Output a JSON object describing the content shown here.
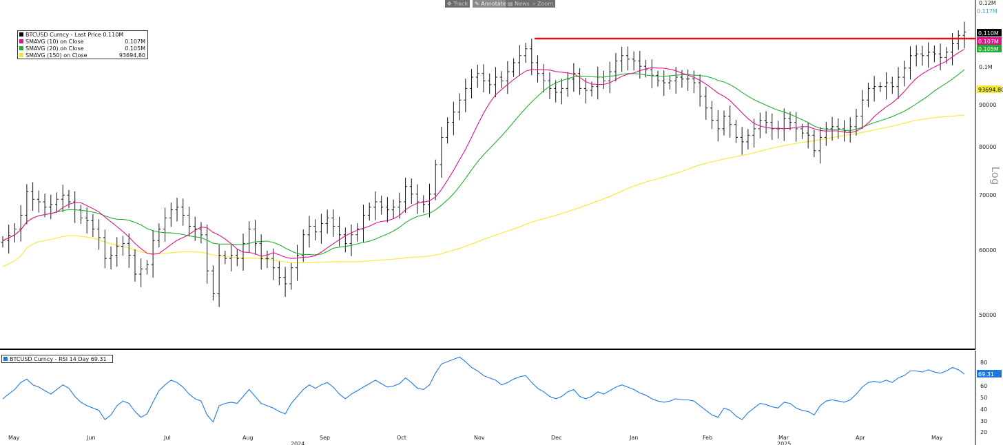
{
  "toolbar": {
    "buttons": [
      {
        "label": "Track",
        "icon": "track-icon",
        "active": false
      },
      {
        "label": "Annotate",
        "icon": "annotate-icon",
        "active": true
      },
      {
        "label": "News",
        "icon": "news-icon",
        "active": false
      },
      {
        "label": "Zoom",
        "icon": "zoom-icon",
        "active": false
      }
    ]
  },
  "price_legend": [
    {
      "label": "BTCUSD Curncy - Last Price 0.110M",
      "value": "",
      "color": "#000000"
    },
    {
      "label": "SMAVG (10)  on Close",
      "value": "0.107M",
      "color": "#e0118a"
    },
    {
      "label": "SMAVG (20)  on Close",
      "value": "0.105M",
      "color": "#1fae2e"
    },
    {
      "label": "SMAVG (150)  on Close",
      "value": "93694.80",
      "color": "#f5ea3a"
    }
  ],
  "rsi_legend": {
    "label": "BTCUSD Curncy - RSI 14 Day 69.31",
    "color": "#1f78e0"
  },
  "axis": {
    "scale_label": "Log",
    "top_tick": "0.12M",
    "ticks": [
      "0.1M",
      "90000",
      "80000",
      "70000",
      "60000",
      "50000"
    ],
    "rsi_ticks": [
      "80",
      "70",
      "60",
      "50",
      "40",
      "30",
      "20"
    ],
    "months": [
      "May",
      "Jun",
      "Jul",
      "Aug",
      "Sep",
      "Oct",
      "Nov",
      "Dec",
      "Jan",
      "Feb",
      "Mar",
      "Apr",
      "May"
    ],
    "years": [
      "2024",
      "2025"
    ]
  },
  "value_tags": {
    "high": {
      "text": "0.117M",
      "color": "#3aa0d8"
    },
    "last": {
      "text": "0.110M",
      "color": "#000000"
    },
    "sma10": {
      "text": "0.107M",
      "color": "#e0118a"
    },
    "sma20": {
      "text": "0.105M",
      "color": "#1fae2e"
    },
    "sma150": {
      "text": "93694.80",
      "color": "#f5ea3a"
    },
    "rsi": {
      "text": "69.31",
      "color": "#1f78e0"
    }
  },
  "chart_data": [
    {
      "type": "ohlc",
      "scale": "log",
      "ylim": [
        45000,
        120000
      ],
      "x_months": [
        "May",
        "Jun",
        "Jul",
        "Aug",
        "Sep",
        "Oct",
        "Nov",
        "Dec",
        "Jan",
        "Feb",
        "Mar",
        "Apr",
        "May"
      ],
      "resistance_level": 108000,
      "series": [
        {
          "name": "BTCUSD Curncy - Last Price",
          "color": "#000000",
          "last": 110000,
          "closes": [
            61500,
            62400,
            63500,
            66000,
            70500,
            69000,
            68500,
            67500,
            68000,
            69000,
            69800,
            68500,
            67000,
            65500,
            65000,
            63500,
            62000,
            58500,
            59000,
            60500,
            61000,
            59000,
            56000,
            56800,
            57500,
            61500,
            63500,
            65500,
            67000,
            67500,
            66000,
            64000,
            63500,
            62500,
            56500,
            53000,
            59000,
            58500,
            59000,
            58500,
            61000,
            63500,
            61000,
            58500,
            58500,
            57000,
            55500,
            54500,
            57000,
            59000,
            62500,
            64000,
            63000,
            64500,
            65500,
            64000,
            62500,
            61000,
            62500,
            63500,
            66000,
            67500,
            68500,
            67500,
            67000,
            67500,
            68500,
            71500,
            70000,
            68500,
            68000,
            70000,
            76000,
            82000,
            85500,
            88000,
            91000,
            94000,
            97000,
            98000,
            96000,
            95000,
            97000,
            96000,
            98500,
            101000,
            103000,
            105000,
            101000,
            98000,
            96000,
            94000,
            93000,
            94000,
            96500,
            98000,
            94000,
            93500,
            94500,
            97000,
            96000,
            98500,
            101500,
            103000,
            102000,
            101500,
            100000,
            99000,
            97500,
            96000,
            95500,
            96000,
            97000,
            96500,
            96500,
            95500,
            92000,
            89000,
            86000,
            84000,
            87000,
            85000,
            82000,
            81000,
            82500,
            84000,
            86000,
            85500,
            84000,
            84000,
            86500,
            85500,
            84000,
            83000,
            82500,
            79000,
            82000,
            84000,
            84500,
            84000,
            83500,
            84500,
            87000,
            91000,
            94000,
            94500,
            94500,
            95500,
            94500,
            97000,
            99500,
            103000,
            103500,
            103000,
            104000,
            103500,
            102500,
            104000,
            106500,
            109000,
            110000
          ]
        },
        {
          "name": "SMAVG (10)  on Close",
          "color": "#e0118a",
          "last": 107000
        },
        {
          "name": "SMAVG (20)  on Close",
          "color": "#1fae2e",
          "last": 105000
        },
        {
          "name": "SMAVG (150)  on Close",
          "color": "#f5ea3a",
          "last": 93694.8
        }
      ]
    },
    {
      "type": "line",
      "ylim": [
        20,
        85
      ],
      "series": [
        {
          "name": "BTCUSD Curncy - RSI 14 Day",
          "color": "#1f78e0",
          "last": 69.31,
          "values": [
            48,
            52,
            56,
            62,
            65,
            60,
            58,
            55,
            52,
            56,
            60,
            57,
            50,
            45,
            42,
            40,
            38,
            30,
            34,
            42,
            46,
            44,
            37,
            32,
            35,
            45,
            55,
            60,
            64,
            62,
            58,
            52,
            48,
            46,
            34,
            28,
            42,
            44,
            45,
            44,
            50,
            56,
            50,
            44,
            42,
            40,
            37,
            35,
            44,
            50,
            56,
            60,
            57,
            60,
            62,
            58,
            52,
            48,
            52,
            55,
            58,
            61,
            64,
            61,
            58,
            59,
            61,
            66,
            62,
            57,
            56,
            60,
            70,
            78,
            80,
            82,
            84,
            80,
            75,
            72,
            68,
            66,
            64,
            60,
            62,
            65,
            67,
            68,
            62,
            57,
            54,
            50,
            48,
            50,
            54,
            56,
            50,
            48,
            50,
            54,
            52,
            55,
            58,
            60,
            58,
            56,
            53,
            51,
            48,
            46,
            45,
            46,
            48,
            47,
            47,
            46,
            42,
            38,
            34,
            32,
            40,
            38,
            33,
            30,
            36,
            40,
            44,
            43,
            41,
            40,
            45,
            44,
            40,
            38,
            37,
            34,
            42,
            46,
            47,
            46,
            45,
            47,
            52,
            58,
            62,
            63,
            62,
            64,
            62,
            66,
            68,
            72,
            72,
            71,
            73,
            71,
            70,
            72,
            75,
            73,
            69.31
          ]
        }
      ]
    }
  ]
}
